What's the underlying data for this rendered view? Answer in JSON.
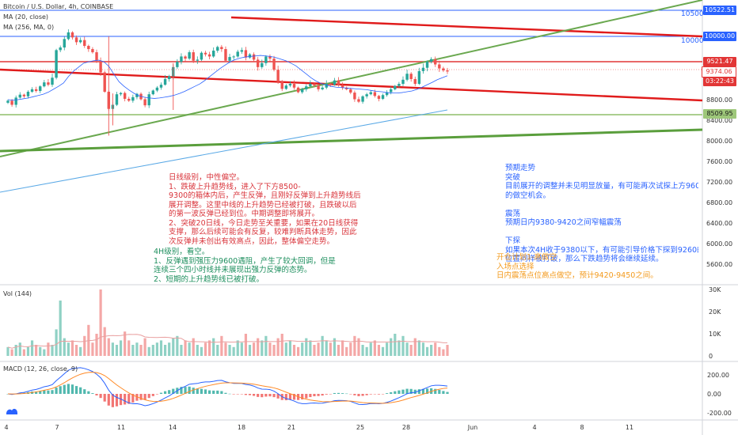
{
  "header": {
    "symbol": "Bitcoin / U.S. Dollar, 4h, COINBASE",
    "ma20": "MA (20, close)",
    "ma256": "MA (256, MA, 0)"
  },
  "level_labels": {
    "l10500": "10500",
    "l10000": "10000"
  },
  "price_tags": [
    {
      "text": "10522.51",
      "price": 10522.51,
      "color": "#2962ff"
    },
    {
      "text": "10000.00",
      "price": 10000,
      "color": "#2962ff"
    },
    {
      "text": "9521.47",
      "price": 9521.47,
      "color": "#e23636"
    },
    {
      "text": "9374.06",
      "price": 9374.06,
      "color": "#ffffff",
      "text_color": "#e23636"
    },
    {
      "text": "03:22:43",
      "price": 9280,
      "color": "#e23636"
    },
    {
      "text": "8509.95",
      "price": 8509.95,
      "color": "#9ec77a",
      "text_color": "#1a1a1a"
    }
  ],
  "chart_data": [
    {
      "type": "candlestick",
      "title": "Bitcoin / U.S. Dollar, 4h, COINBASE",
      "y_axis_ticks": [
        10500,
        10000,
        9200,
        8800,
        8400,
        8000,
        7600,
        7200,
        6800,
        6400,
        6000,
        5600
      ],
      "y_axis_labels": [
        "10500",
        "10000",
        "9200.00",
        "8800.00",
        "8400.00",
        "8000.00",
        "7600.00",
        "7200.00",
        "6800.00",
        "6400.00",
        "6000.00",
        "5600.00"
      ],
      "x_axis_labels": [
        "4",
        "7",
        "11",
        "14",
        "18",
        "21",
        "25",
        "28",
        "Jun",
        "4",
        "8",
        "11"
      ],
      "ylim": [
        5300,
        10700
      ],
      "closes": [
        8780,
        8700,
        8850,
        8920,
        8880,
        8990,
        9050,
        9010,
        9120,
        9210,
        9160,
        9280,
        9740,
        9790,
        9950,
        10080,
        9980,
        9890,
        9930,
        9820,
        9760,
        9700,
        9540,
        9360,
        8990,
        8620,
        8700,
        8930,
        8960,
        8820,
        8780,
        8860,
        8940,
        8810,
        8690,
        8930,
        9020,
        9090,
        9160,
        9260,
        9300,
        9440,
        9520,
        9620,
        9580,
        9700,
        9540,
        9560,
        9690,
        9660,
        9620,
        9730,
        9800,
        9760,
        9540,
        9610,
        9620,
        9710,
        9740,
        9600,
        9660,
        9560,
        9440,
        9500,
        9620,
        9580,
        9400,
        9220,
        9060,
        9140,
        9180,
        9090,
        8980,
        9050,
        9120,
        9180,
        9140,
        9050,
        9090,
        9180,
        9160,
        9240,
        9150,
        9090,
        9050,
        8970,
        8810,
        8760,
        8880,
        8930,
        8980,
        8890,
        8820,
        8910,
        8980,
        9050,
        9130,
        9180,
        9250,
        9340,
        9260,
        9180,
        9380,
        9430,
        9520,
        9570,
        9480,
        9420,
        9390,
        9374
      ],
      "ma20": [
        8800,
        8790,
        8800,
        8820,
        8840,
        8870,
        8900,
        8930,
        8980,
        9050,
        9120,
        9200,
        9300,
        9380,
        9440,
        9500,
        9520,
        9540,
        9550,
        9520,
        9450,
        9330,
        9220,
        9120,
        9030,
        8950,
        8890,
        8860,
        8840,
        8830,
        8840,
        8860,
        8880,
        8910,
        8950,
        9000,
        9060,
        9120,
        9180,
        9240,
        9300,
        9360,
        9420,
        9470,
        9520,
        9560,
        9590,
        9610,
        9620,
        9630,
        9640,
        9630,
        9620,
        9600,
        9570,
        9540,
        9500,
        9460,
        9400,
        9340,
        9280,
        9230,
        9190,
        9150,
        9120,
        9100,
        9090,
        9080,
        9070,
        9060,
        9050,
        9040,
        9020,
        9000,
        8990,
        8970,
        8960,
        8960,
        8970,
        8990,
        9010,
        9050,
        9100,
        9160,
        9210,
        9250,
        9280,
        9310
      ],
      "ma256": [
        6700,
        8560
      ],
      "volume": {
        "name": "Vol (144)",
        "ticks": [
          "30K",
          "20K",
          "10K",
          "0"
        ],
        "values": [
          4,
          3,
          5,
          6,
          3,
          4,
          7,
          5,
          4,
          3,
          6,
          5,
          12,
          25,
          8,
          6,
          7,
          5,
          4,
          9,
          14,
          6,
          10,
          30,
          13,
          8,
          6,
          5,
          7,
          11,
          7,
          5,
          6,
          5,
          8,
          4,
          5,
          6,
          7,
          5,
          6,
          8,
          9,
          5,
          7,
          6,
          8,
          5,
          4,
          6,
          7,
          8,
          5,
          9,
          6,
          5,
          4,
          7,
          6,
          10,
          5,
          6,
          8,
          7,
          9,
          6,
          5,
          8,
          10,
          6,
          7,
          5,
          4,
          6,
          8,
          7,
          5,
          6,
          9,
          7,
          6,
          8,
          5,
          7,
          4,
          6,
          9,
          8,
          5,
          4,
          6,
          7,
          5,
          4,
          6,
          8,
          10,
          7,
          9,
          6,
          5,
          8,
          7,
          6,
          4,
          5,
          6,
          4,
          3,
          5
        ]
      },
      "macd": {
        "name": "MACD (12, 26, close, 9)",
        "ticks": [
          "200.00",
          "0.00",
          "-200.00"
        ],
        "tick_values": [
          200,
          0,
          -200
        ]
      }
    }
  ],
  "annotations": {
    "red": "日线级别，中性偏空。\n1、跌破上升趋势线，进入了下方8500-\n9300的箱体内后，产生反弹，且刚好反弹到上升趋势线后\n展开调整。这里中线的上升趋势已经被打破，且跌破以后\n的第一波反弹已经到位。中期调整即将展开。\n2、突破20日线，今日走势至关重要，如果在20日线获得\n支撑，那么后续可能会有反复，较难判断具体走势，因此\n次反弹并未创出有效高点，因此，整体偏空走势。",
    "green": "4H级别，看空。\n1、反弹遇到强压力9600遇阻，产生了较大回调，但是\n连续三个四小时线并未展现出强力反弹的态势。\n2、短期的上升趋势线已被打破。",
    "blue": "预期走势\n突破\n目前展开的调整并未见明显放量，有可能再次试探上方9600的\n的做空机会。\n\n震荡\n预期日内9380-9420之间窄幅震荡\n\n下探\n如果本次4H收于9380以下，有可能引导价格下探到9260的4H\n位置同样被打破，那么下跌趋势将会继续延续。",
    "orange": "开仓计划1-高做空\n入场点选择\n日内震荡点位高点做空，预计9420-9450之间。"
  }
}
